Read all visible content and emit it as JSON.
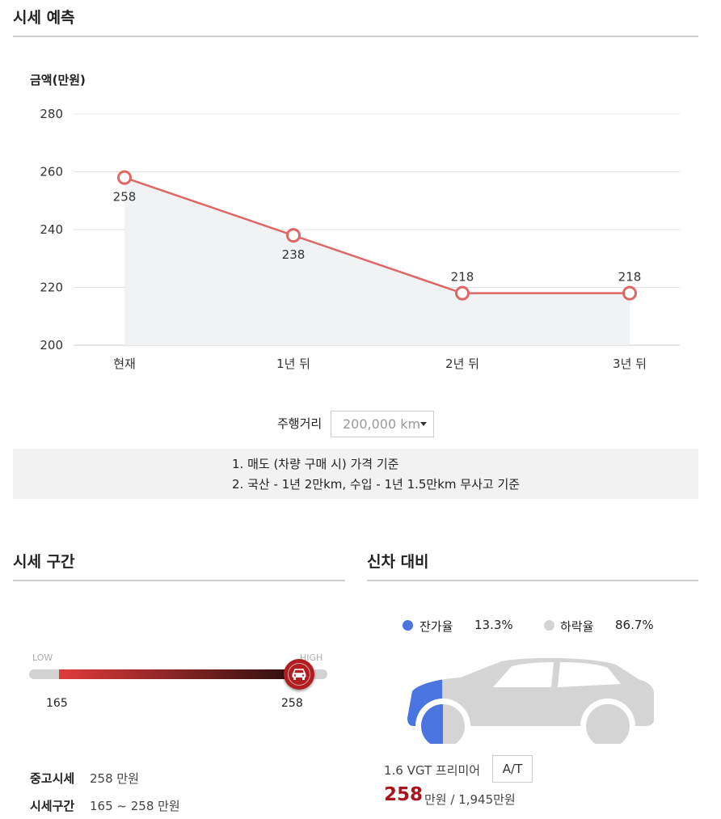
{
  "forecast": {
    "title": "시세 예측",
    "ylabel": "금액(만원)",
    "chart_data": {
      "type": "area",
      "categories": [
        "현재",
        "1년 뒤",
        "2년 뒤",
        "3년 뒤"
      ],
      "values": [
        258,
        238,
        218,
        218
      ],
      "data_labels": [
        "258",
        "238",
        "218",
        "218"
      ],
      "yticks": [
        "280",
        "260",
        "240",
        "220",
        "200"
      ],
      "ylim": [
        200,
        280
      ],
      "ylabel": "금액(만원)",
      "grid": true,
      "line_color": "#e06666",
      "fill_color": "#f1f2f4"
    },
    "mileage_label": "주행거리",
    "mileage_value": "200,000 km",
    "notes": [
      "1. 매도 (차량 구매 시) 가격 기준",
      "2. 국산 - 1년 2만km, 수입 - 1년 1.5만km 무사고 기준"
    ]
  },
  "range": {
    "title": "시세 구간",
    "low_label": "LOW",
    "high_label": "HIGH",
    "min_value": "165",
    "max_value": "258",
    "used_price_label": "중고시세",
    "used_price_value": "258 만원",
    "range_label": "시세구간",
    "range_value": "165 ~ 258 만원",
    "accent": "#b01e22"
  },
  "newcar": {
    "title": "신차 대비",
    "residual_label": "잔가율",
    "residual_value": "13.3%",
    "residual_color": "#4a74e0",
    "drop_label": "하락율",
    "drop_value": "86.7%",
    "drop_color": "#d4d4d4",
    "trim": "1.6 VGT 프리미어",
    "transmission": "A/T",
    "price": "258",
    "price_suffix": "만원 / 1,945만원"
  }
}
